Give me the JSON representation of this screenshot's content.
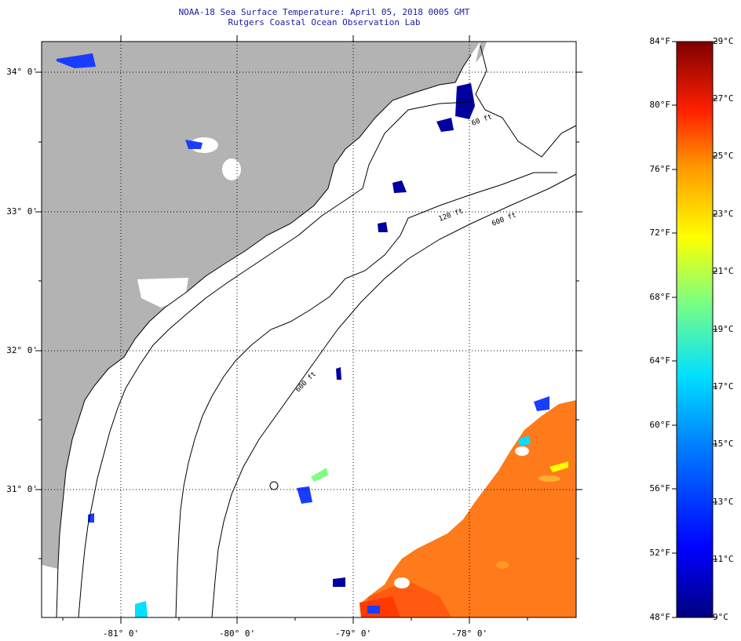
{
  "title": {
    "line1": "NOAA-18 Sea Surface Temperature:  April 05, 2018 0005 GMT",
    "line2": "Rutgers Coastal Ocean Observation Lab"
  },
  "map": {
    "lat_labels": [
      "34° 0'",
      "33° 0'",
      "32° 0'",
      "31° 0'"
    ],
    "lon_labels": [
      "-81° 0'",
      "-80° 0'",
      "-79° 0'",
      "-78° 0'"
    ],
    "isobath_labels": [
      "120 ft",
      "600 ft",
      "600 ft",
      "60 ft"
    ],
    "land_color": "#b3b3b3",
    "warm_water_color": "#ff7a1a"
  },
  "colorbar": {
    "fahrenheit": [
      "84°F",
      "80°F",
      "76°F",
      "72°F",
      "68°F",
      "64°F",
      "60°F",
      "56°F",
      "52°F",
      "48°F"
    ],
    "celsius": [
      "29°C",
      "27°C",
      "25°C",
      "23°C",
      "21°C",
      "19°C",
      "17°C",
      "15°C",
      "13°C",
      "11°C",
      "9°C"
    ]
  }
}
